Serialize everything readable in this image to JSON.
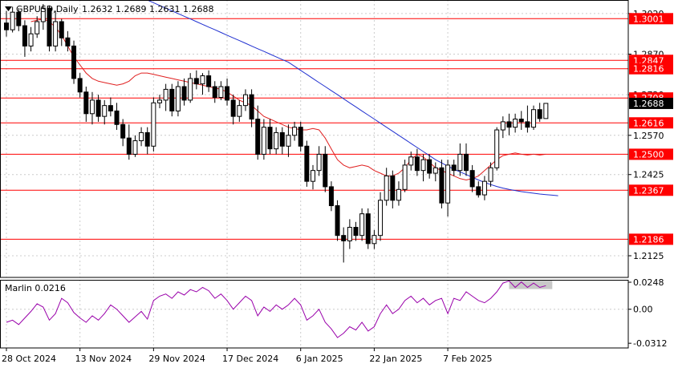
{
  "header": {
    "symbol": "GBPUSD,Daily",
    "open": "1.2632",
    "high": "1.2689",
    "low": "1.2631",
    "close": "1.2688"
  },
  "indicator": {
    "label": "Marlin 0.0216"
  },
  "colors": {
    "level_line": "#ff0000",
    "ma_fast": "#e02020",
    "ma_slow": "#2030d0",
    "marlin": "#9900aa",
    "candle": "#000000",
    "grid": "#cccccc"
  },
  "chart_data": [
    {
      "type": "candlestick",
      "title": "GBPUSD,Daily",
      "ylim": [
        1.2045,
        1.307
      ],
      "ytick_labels": [
        "1.3020",
        "1.2870",
        "1.2720",
        "1.2570",
        "1.2425",
        "1.2125"
      ],
      "ytick_values": [
        1.302,
        1.287,
        1.272,
        1.257,
        1.2425,
        1.2125
      ],
      "xtick_labels": [
        "28 Oct 2024",
        "13 Nov 2024",
        "29 Nov 2024",
        "17 Dec 2024",
        "6 Jan 2025",
        "22 Jan 2025",
        "7 Feb 2025"
      ],
      "xtick_index": [
        0,
        12,
        24,
        36,
        48,
        60,
        72
      ],
      "levels": [
        {
          "label": "1.3001",
          "value": 1.3001
        },
        {
          "label": "1.2847",
          "value": 1.2847
        },
        {
          "label": "1.2816",
          "value": 1.2816
        },
        {
          "label": "1.2708",
          "value": 1.2708
        },
        {
          "label": "1.2616",
          "value": 1.2616
        },
        {
          "label": "1.2500",
          "value": 1.25
        },
        {
          "label": "1.2367",
          "value": 1.2367
        },
        {
          "label": "1.2186",
          "value": 1.2186
        }
      ],
      "current_price": "1.2688",
      "candles": [
        [
          1.2985,
          1.303,
          1.2935,
          1.296
        ],
        [
          1.296,
          1.3045,
          1.295,
          1.3025
        ],
        [
          1.3025,
          1.304,
          1.2955,
          1.2975
        ],
        [
          1.2975,
          1.2995,
          1.286,
          1.29
        ],
        [
          1.29,
          1.297,
          1.288,
          1.2945
        ],
        [
          1.2945,
          1.301,
          1.293,
          1.299
        ],
        [
          1.299,
          1.3055,
          1.296,
          1.304
        ],
        [
          1.304,
          1.305,
          1.288,
          1.29
        ],
        [
          1.29,
          1.303,
          1.288,
          1.299
        ],
        [
          1.299,
          1.3,
          1.29,
          1.293
        ],
        [
          1.293,
          1.2955,
          1.288,
          1.29
        ],
        [
          1.29,
          1.292,
          1.276,
          1.278
        ],
        [
          1.278,
          1.28,
          1.271,
          1.273
        ],
        [
          1.273,
          1.275,
          1.262,
          1.265
        ],
        [
          1.265,
          1.273,
          1.261,
          1.27
        ],
        [
          1.27,
          1.272,
          1.262,
          1.264
        ],
        [
          1.264,
          1.27,
          1.261,
          1.268
        ],
        [
          1.268,
          1.271,
          1.264,
          1.266
        ],
        [
          1.266,
          1.269,
          1.259,
          1.261
        ],
        [
          1.261,
          1.263,
          1.253,
          1.256
        ],
        [
          1.256,
          1.261,
          1.248,
          1.25
        ],
        [
          1.25,
          1.257,
          1.249,
          1.255
        ],
        [
          1.255,
          1.26,
          1.253,
          1.258
        ],
        [
          1.258,
          1.26,
          1.25,
          1.253
        ],
        [
          1.253,
          1.271,
          1.251,
          1.269
        ],
        [
          1.269,
          1.272,
          1.267,
          1.27
        ],
        [
          1.27,
          1.276,
          1.266,
          1.274
        ],
        [
          1.274,
          1.276,
          1.264,
          1.266
        ],
        [
          1.266,
          1.277,
          1.264,
          1.275
        ],
        [
          1.275,
          1.278,
          1.268,
          1.27
        ],
        [
          1.27,
          1.28,
          1.269,
          1.278
        ],
        [
          1.278,
          1.281,
          1.274,
          1.276
        ],
        [
          1.276,
          1.28,
          1.272,
          1.279
        ],
        [
          1.279,
          1.281,
          1.273,
          1.275
        ],
        [
          1.275,
          1.277,
          1.269,
          1.271
        ],
        [
          1.271,
          1.277,
          1.27,
          1.275
        ],
        [
          1.275,
          1.278,
          1.268,
          1.27
        ],
        [
          1.27,
          1.272,
          1.261,
          1.264
        ],
        [
          1.264,
          1.27,
          1.262,
          1.268
        ],
        [
          1.268,
          1.274,
          1.266,
          1.272
        ],
        [
          1.272,
          1.274,
          1.26,
          1.263
        ],
        [
          1.263,
          1.268,
          1.248,
          1.25
        ],
        [
          1.25,
          1.263,
          1.248,
          1.26
        ],
        [
          1.26,
          1.263,
          1.25,
          1.252
        ],
        [
          1.252,
          1.26,
          1.25,
          1.258
        ],
        [
          1.258,
          1.26,
          1.25,
          1.253
        ],
        [
          1.253,
          1.261,
          1.249,
          1.257
        ],
        [
          1.257,
          1.262,
          1.255,
          1.26
        ],
        [
          1.26,
          1.262,
          1.251,
          1.253
        ],
        [
          1.253,
          1.255,
          1.238,
          1.24
        ],
        [
          1.24,
          1.246,
          1.237,
          1.244
        ],
        [
          1.244,
          1.253,
          1.242,
          1.25
        ],
        [
          1.25,
          1.253,
          1.236,
          1.238
        ],
        [
          1.238,
          1.24,
          1.229,
          1.231
        ],
        [
          1.231,
          1.233,
          1.218,
          1.22
        ],
        [
          1.22,
          1.223,
          1.21,
          1.218
        ],
        [
          1.218,
          1.226,
          1.215,
          1.223
        ],
        [
          1.223,
          1.225,
          1.218,
          1.22
        ],
        [
          1.22,
          1.23,
          1.218,
          1.228
        ],
        [
          1.228,
          1.23,
          1.215,
          1.217
        ],
        [
          1.217,
          1.222,
          1.215,
          1.22
        ],
        [
          1.22,
          1.236,
          1.218,
          1.233
        ],
        [
          1.233,
          1.245,
          1.231,
          1.242
        ],
        [
          1.242,
          1.244,
          1.23,
          1.233
        ],
        [
          1.233,
          1.24,
          1.231,
          1.237
        ],
        [
          1.237,
          1.248,
          1.236,
          1.246
        ],
        [
          1.246,
          1.251,
          1.244,
          1.249
        ],
        [
          1.249,
          1.252,
          1.242,
          1.244
        ],
        [
          1.244,
          1.25,
          1.24,
          1.248
        ],
        [
          1.248,
          1.25,
          1.241,
          1.243
        ],
        [
          1.243,
          1.247,
          1.24,
          1.245
        ],
        [
          1.245,
          1.248,
          1.23,
          1.232
        ],
        [
          1.232,
          1.248,
          1.227,
          1.246
        ],
        [
          1.246,
          1.248,
          1.242,
          1.244
        ],
        [
          1.244,
          1.254,
          1.242,
          1.25
        ],
        [
          1.25,
          1.254,
          1.242,
          1.244
        ],
        [
          1.244,
          1.246,
          1.236,
          1.238
        ],
        [
          1.238,
          1.24,
          1.234,
          1.235
        ],
        [
          1.235,
          1.242,
          1.233,
          1.24
        ],
        [
          1.24,
          1.247,
          1.238,
          1.245
        ],
        [
          1.245,
          1.26,
          1.244,
          1.259
        ],
        [
          1.259,
          1.264,
          1.256,
          1.262
        ],
        [
          1.262,
          1.265,
          1.257,
          1.26
        ],
        [
          1.26,
          1.265,
          1.258,
          1.263
        ],
        [
          1.263,
          1.266,
          1.259,
          1.262
        ],
        [
          1.262,
          1.268,
          1.258,
          1.26
        ],
        [
          1.26,
          1.268,
          1.259,
          1.2665
        ],
        [
          1.2665,
          1.269,
          1.262,
          1.2632
        ],
        [
          1.2632,
          1.2689,
          1.2631,
          1.2688
        ]
      ],
      "ma_fast": [
        1.299,
        1.2995,
        1.3,
        1.299,
        1.297,
        1.294,
        1.29,
        1.286,
        1.283,
        1.28,
        1.278,
        1.277,
        1.2765,
        1.276,
        1.2755,
        1.276,
        1.277,
        1.279,
        1.28,
        1.28,
        1.2795,
        1.279,
        1.2785,
        1.278,
        1.2775,
        1.277,
        1.2765,
        1.276,
        1.2755,
        1.275,
        1.2745,
        1.274,
        1.273,
        1.2715,
        1.27,
        1.269,
        1.268,
        1.266,
        1.264,
        1.263,
        1.262,
        1.261,
        1.26,
        1.2595,
        1.259,
        1.259,
        1.2595,
        1.259,
        1.256,
        1.252,
        1.248,
        1.246,
        1.245,
        1.2455,
        1.246,
        1.2455,
        1.244,
        1.243,
        1.242,
        1.242,
        1.243,
        1.245,
        1.248,
        1.25,
        1.249,
        1.247,
        1.245,
        1.244,
        1.243,
        1.242,
        1.241,
        1.2405,
        1.241,
        1.242,
        1.244,
        1.246,
        1.248,
        1.2495,
        1.25,
        1.2505,
        1.25,
        1.2497,
        1.25,
        1.2497,
        1.25
      ],
      "ma_slow": [
        1.31,
        1.309,
        1.308,
        1.307,
        1.306,
        1.305,
        1.304,
        1.303,
        1.302,
        1.301,
        1.3,
        1.299,
        1.298,
        1.297,
        1.296,
        1.295,
        1.294,
        1.293,
        1.292,
        1.291,
        1.29,
        1.289,
        1.288,
        1.287,
        1.286,
        1.285,
        1.284,
        1.2825,
        1.281,
        1.2795,
        1.278,
        1.2765,
        1.275,
        1.2735,
        1.272,
        1.2705,
        1.269,
        1.2675,
        1.266,
        1.2645,
        1.263,
        1.2615,
        1.26,
        1.2585,
        1.257,
        1.2555,
        1.254,
        1.2525,
        1.251,
        1.2495,
        1.248,
        1.2468,
        1.2456,
        1.2445,
        1.2435,
        1.2425,
        1.2415,
        1.2405,
        1.2396,
        1.2388,
        1.2381,
        1.2375,
        1.237,
        1.2366,
        1.2362,
        1.2359,
        1.2356,
        1.2353,
        1.2351,
        1.2349,
        1.2347
      ],
      "marlin_ylim": [
        -0.0355,
        0.027
      ],
      "marlin_ticks": [
        {
          "label": "0.0248",
          "value": 0.0248
        },
        {
          "label": "0.00",
          "value": 0.0
        },
        {
          "label": "-0.0312",
          "value": -0.0312
        }
      ],
      "marlin": [
        -0.012,
        -0.01,
        -0.014,
        -0.008,
        -0.002,
        0.005,
        0.002,
        -0.01,
        -0.004,
        0.01,
        0.006,
        -0.003,
        -0.008,
        -0.012,
        -0.006,
        -0.01,
        -0.004,
        0.004,
        0.0,
        -0.006,
        -0.012,
        -0.007,
        -0.002,
        -0.009,
        0.008,
        0.012,
        0.014,
        0.01,
        0.016,
        0.013,
        0.018,
        0.016,
        0.02,
        0.017,
        0.01,
        0.014,
        0.008,
        0.0,
        0.006,
        0.012,
        0.008,
        -0.006,
        0.002,
        -0.002,
        0.004,
        0.0,
        0.004,
        0.01,
        0.004,
        -0.01,
        -0.006,
        0.0,
        -0.012,
        -0.018,
        -0.026,
        -0.022,
        -0.016,
        -0.019,
        -0.012,
        -0.02,
        -0.016,
        -0.004,
        0.004,
        -0.004,
        0.0,
        0.008,
        0.012,
        0.006,
        0.01,
        0.004,
        0.008,
        0.01,
        -0.004,
        0.01,
        0.008,
        0.016,
        0.012,
        0.008,
        0.006,
        0.01,
        0.016,
        0.024,
        0.026,
        0.02,
        0.025,
        0.02,
        0.024,
        0.02,
        0.0216
      ]
    }
  ]
}
